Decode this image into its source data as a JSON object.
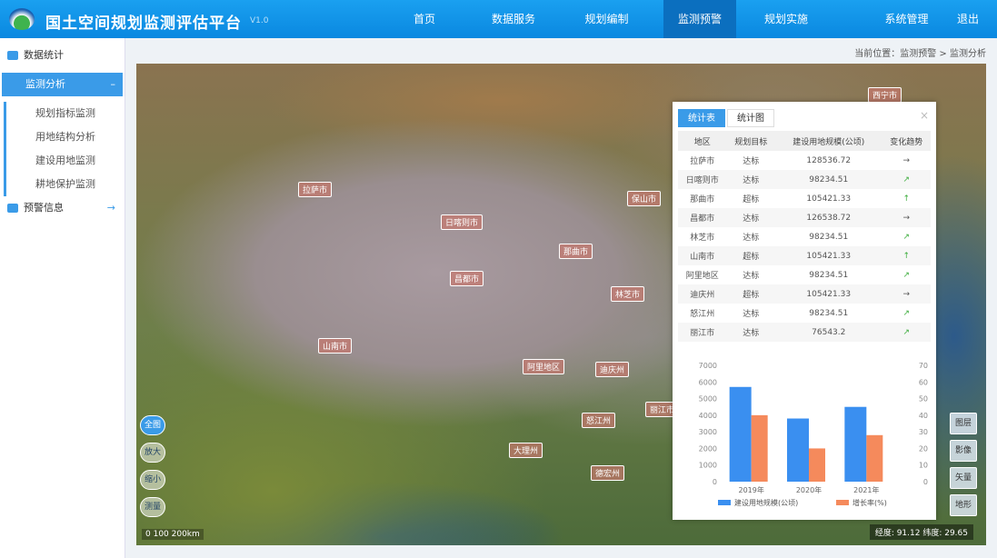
{
  "header": {
    "title": "国土空间规划监测评估平台",
    "version": "V1.0",
    "nav": [
      "首页",
      "数据服务",
      "规划编制",
      "监测预警",
      "规划实施",
      "系统管理",
      "退出"
    ],
    "active_nav": 3
  },
  "sidebar": {
    "items": [
      {
        "label": "数据统计"
      },
      {
        "label": "监测分析",
        "active": true
      },
      {
        "label": "规划指标监测"
      },
      {
        "label": "用地结构分析"
      },
      {
        "label": "建设用地监测"
      },
      {
        "label": "耕地保护监测"
      },
      {
        "label": "预警信息"
      }
    ]
  },
  "breadcrumb": "当前位置：监测预警 > 监测分析",
  "map": {
    "labels": [
      "拉萨市",
      "日喀则市",
      "那曲市",
      "昌都市",
      "林芝市",
      "山南市",
      "阿里地区",
      "迪庆州",
      "怒江州",
      "丽江市",
      "大理州",
      "西宁市",
      "德宏州",
      "保山市"
    ],
    "zoom_buttons": [
      "全图",
      "放大",
      "缩小",
      "测量"
    ],
    "right_buttons": [
      "图层",
      "影像",
      "矢量",
      "地形"
    ],
    "scale": "0   100   200km",
    "coord": "经度: 91.12  纬度: 29.65"
  },
  "panel": {
    "tabs": [
      "统计表",
      "统计图"
    ],
    "active_tab": 0,
    "close": "×",
    "columns": [
      "地区",
      "规划目标",
      "建设用地规模(公顷)",
      "变化趋势"
    ],
    "rows": [
      [
        "拉萨市",
        "达标",
        "128536.72",
        "→"
      ],
      [
        "日喀则市",
        "达标",
        "98234.51",
        "↗"
      ],
      [
        "那曲市",
        "超标",
        "105421.33",
        "↑"
      ],
      [
        "昌都市",
        "达标",
        "126538.72",
        "→"
      ],
      [
        "林芝市",
        "达标",
        "98234.51",
        "↗"
      ],
      [
        "山南市",
        "超标",
        "105421.33",
        "↑"
      ],
      [
        "阿里地区",
        "达标",
        "98234.51",
        "↗"
      ],
      [
        "迪庆州",
        "超标",
        "105421.33",
        "→"
      ],
      [
        "怒江州",
        "达标",
        "98234.51",
        "↗"
      ],
      [
        "丽江市",
        "达标",
        "76543.2",
        "↗"
      ]
    ]
  },
  "chart_data": {
    "type": "bar",
    "categories": [
      "2019年",
      "2020年",
      "2021年"
    ],
    "series": [
      {
        "name": "建设用地规模(公顷)",
        "axis": "left",
        "values": [
          5700,
          3800,
          4500
        ],
        "color": "#3a8ff0"
      },
      {
        "name": "增长率(%)",
        "axis": "right",
        "values": [
          40,
          20,
          28
        ],
        "color": "#f58a5c"
      }
    ],
    "ylim_left": [
      0,
      7000
    ],
    "ylim_right": [
      0,
      70
    ],
    "left_ticks": [
      0,
      1000,
      2000,
      3000,
      4000,
      5000,
      6000,
      7000
    ],
    "right_ticks": [
      0,
      10,
      20,
      30,
      40,
      50,
      60,
      70
    ],
    "legend": "bottom",
    "grid": false
  }
}
